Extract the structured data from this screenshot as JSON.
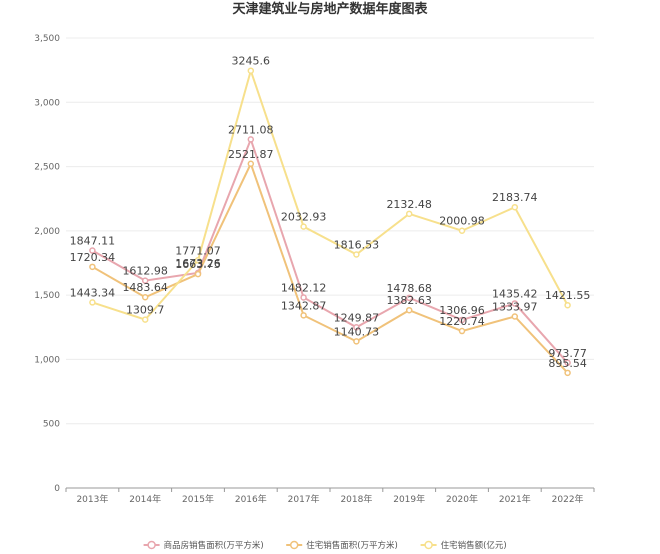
{
  "chart_data": {
    "type": "line",
    "title": "天津建筑业与房地产数据年度图表",
    "xlabel": "",
    "ylabel": "",
    "categories": [
      "2013年",
      "2014年",
      "2015年",
      "2016年",
      "2017年",
      "2018年",
      "2019年",
      "2020年",
      "2021年",
      "2022年"
    ],
    "ylim": [
      0,
      3500
    ],
    "yticks": [
      0,
      500,
      1000,
      1500,
      2000,
      2500,
      3000,
      3500
    ],
    "ytick_labels": [
      "0",
      "500",
      "1,000",
      "1,500",
      "2,000",
      "2,500",
      "3,000",
      "3,500"
    ],
    "grid": "horizontal",
    "legend_position": "bottom",
    "series": [
      {
        "name": "商品房销售面积(万平方米)",
        "color": "#e8a6ae",
        "values": [
          1847.11,
          1612.98,
          1673.26,
          2711.08,
          1482.12,
          1249.87,
          1478.68,
          1306.96,
          1435.42,
          973.77
        ],
        "labels": [
          "1847.11",
          "1612.98",
          "1673.26",
          "2711.08",
          "1482.12",
          "1249.87",
          "1478.68",
          "1306.96",
          "1435.42",
          "973.77"
        ]
      },
      {
        "name": "住宅销售面积(万平方米)",
        "color": "#f0c27a",
        "values": [
          1720.34,
          1483.64,
          1663.75,
          2521.87,
          1342.87,
          1140.73,
          1382.63,
          1220.74,
          1333.97,
          895.54
        ],
        "labels": [
          "1720.34",
          "1483.64",
          "1663.75",
          "2521.87",
          "1342.87",
          "1140.73",
          "1382.63",
          "1220.74",
          "1333.97",
          "895.54"
        ]
      },
      {
        "name": "住宅销售额(亿元)",
        "color": "#f7e08c",
        "values": [
          1443.34,
          1309.7,
          1771.07,
          3245.6,
          2032.93,
          1816.53,
          2132.48,
          2000.98,
          2183.74,
          1421.55
        ],
        "labels": [
          "1443.34",
          "1309.7",
          "1771.07",
          "3245.6",
          "2032.93",
          "1816.53",
          "2132.48",
          "2000.98",
          "2183.74",
          "1421.55"
        ]
      }
    ]
  }
}
